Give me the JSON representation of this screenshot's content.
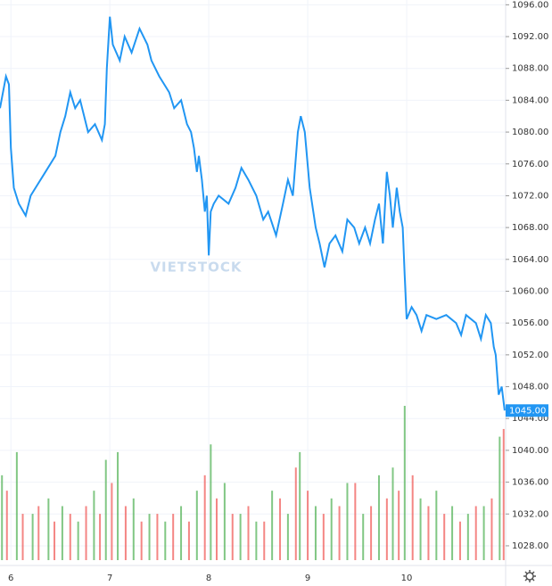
{
  "chart_data": {
    "type": "line",
    "watermark": "VIETSTOCK",
    "xlim": [
      5.89,
      11.0
    ],
    "xticks": [
      6,
      7,
      8,
      9,
      10
    ],
    "ylim": [
      1026.2,
      1096.6
    ],
    "yticks": [
      {
        "value": 1096,
        "label": "1096.00"
      },
      {
        "value": 1092,
        "label": "1092.00"
      },
      {
        "value": 1088,
        "label": "1088.00"
      },
      {
        "value": 1084,
        "label": "1084.00"
      },
      {
        "value": 1080,
        "label": "1080.00"
      },
      {
        "value": 1076,
        "label": "1076.00"
      },
      {
        "value": 1072,
        "label": "1072.00"
      },
      {
        "value": 1068,
        "label": "1068.00"
      },
      {
        "value": 1064,
        "label": "1064.00"
      },
      {
        "value": 1060,
        "label": "1060.00"
      },
      {
        "value": 1056,
        "label": "1056.00"
      },
      {
        "value": 1052,
        "label": "1052.00"
      },
      {
        "value": 1048,
        "label": "1048.00"
      },
      {
        "value": 1044,
        "label": "1044.00"
      },
      {
        "value": 1040,
        "label": "1040.00"
      },
      {
        "value": 1036,
        "label": "1036.00"
      },
      {
        "value": 1032,
        "label": "1032.00"
      },
      {
        "value": 1028,
        "label": "1028.00"
      }
    ],
    "grid": true,
    "last_price": {
      "value": 1045,
      "label": "1045.00",
      "color": "#2196f3"
    },
    "series": [
      {
        "color": "#2196f3",
        "x": [
          5.89,
          5.95,
          5.98,
          6.0,
          6.03,
          6.08,
          6.15,
          6.2,
          6.25,
          6.35,
          6.45,
          6.5,
          6.55,
          6.6,
          6.65,
          6.7,
          6.78,
          6.85,
          6.92,
          6.95,
          6.97,
          7.0,
          7.03,
          7.1,
          7.15,
          7.22,
          7.3,
          7.38,
          7.42,
          7.5,
          7.55,
          7.6,
          7.65,
          7.72,
          7.78,
          7.82,
          7.85,
          7.88,
          7.9,
          7.93,
          7.96,
          7.98,
          8.0,
          8.02,
          8.05,
          8.1,
          8.2,
          8.27,
          8.33,
          8.4,
          8.48,
          8.55,
          8.6,
          8.68,
          8.75,
          8.8,
          8.85,
          8.9,
          8.93,
          8.97,
          9.02,
          9.08,
          9.12,
          9.17,
          9.22,
          9.28,
          9.35,
          9.4,
          9.47,
          9.52,
          9.58,
          9.63,
          9.68,
          9.72,
          9.76,
          9.8,
          9.83,
          9.86,
          9.9,
          9.93,
          9.96,
          9.98,
          10.0,
          10.05,
          10.1,
          10.15,
          10.2,
          10.3,
          10.4,
          10.5,
          10.55,
          10.6,
          10.7,
          10.75,
          10.8,
          10.85,
          10.88,
          10.9,
          10.93,
          10.96,
          10.99
        ],
        "values": [
          1083,
          1087,
          1086,
          1078,
          1073,
          1071,
          1069.5,
          1072,
          1073,
          1075,
          1077,
          1080,
          1082,
          1085,
          1083,
          1084,
          1080,
          1081,
          1079,
          1081,
          1088,
          1094.5,
          1091,
          1089,
          1092,
          1090,
          1093,
          1091,
          1089,
          1087,
          1086,
          1085,
          1083,
          1084,
          1081,
          1080,
          1078,
          1075,
          1077,
          1074,
          1070,
          1072,
          1064.5,
          1070,
          1071,
          1072,
          1071,
          1073,
          1075.5,
          1074,
          1072,
          1069,
          1070,
          1067,
          1071,
          1074,
          1072,
          1080,
          1082,
          1080,
          1073,
          1068,
          1066,
          1063,
          1066,
          1067,
          1065,
          1069,
          1068,
          1066,
          1068,
          1066,
          1069,
          1071,
          1066,
          1075,
          1072,
          1068,
          1073,
          1070,
          1068,
          1062,
          1056.5,
          1058,
          1057,
          1055,
          1057,
          1056.5,
          1057,
          1056,
          1054.5,
          1057,
          1056,
          1054,
          1057,
          1056,
          1053,
          1052,
          1047,
          1048,
          1045
        ]
      }
    ],
    "volume": [
      {
        "color": "#4caf50",
        "x": [
          5.91,
          6.06,
          6.22,
          6.38,
          6.52,
          6.68,
          6.84,
          6.96,
          7.08,
          7.24,
          7.4,
          7.56,
          7.72,
          7.88,
          8.02,
          8.16,
          8.32,
          8.48,
          8.64,
          8.8,
          8.92,
          9.08,
          9.24,
          9.4,
          9.56,
          9.72,
          9.86,
          9.98,
          10.14,
          10.3,
          10.46,
          10.62,
          10.78,
          10.94
        ],
        "values": [
          55,
          70,
          30,
          40,
          35,
          25,
          45,
          65,
          70,
          40,
          30,
          25,
          35,
          45,
          75,
          50,
          30,
          25,
          45,
          30,
          70,
          35,
          40,
          50,
          30,
          55,
          60,
          100,
          40,
          45,
          35,
          30,
          35,
          80
        ]
      },
      {
        "color": "#ef5350",
        "x": [
          5.96,
          6.12,
          6.28,
          6.44,
          6.6,
          6.76,
          6.9,
          7.02,
          7.16,
          7.32,
          7.48,
          7.64,
          7.8,
          7.96,
          8.08,
          8.24,
          8.4,
          8.56,
          8.72,
          8.88,
          9.0,
          9.16,
          9.32,
          9.48,
          9.64,
          9.8,
          9.92,
          10.06,
          10.22,
          10.38,
          10.54,
          10.7,
          10.86,
          10.98
        ],
        "values": [
          45,
          30,
          35,
          25,
          30,
          35,
          30,
          50,
          35,
          25,
          30,
          30,
          25,
          55,
          40,
          30,
          35,
          25,
          40,
          60,
          45,
          30,
          35,
          50,
          35,
          40,
          45,
          55,
          35,
          30,
          25,
          35,
          40,
          85
        ]
      }
    ]
  }
}
